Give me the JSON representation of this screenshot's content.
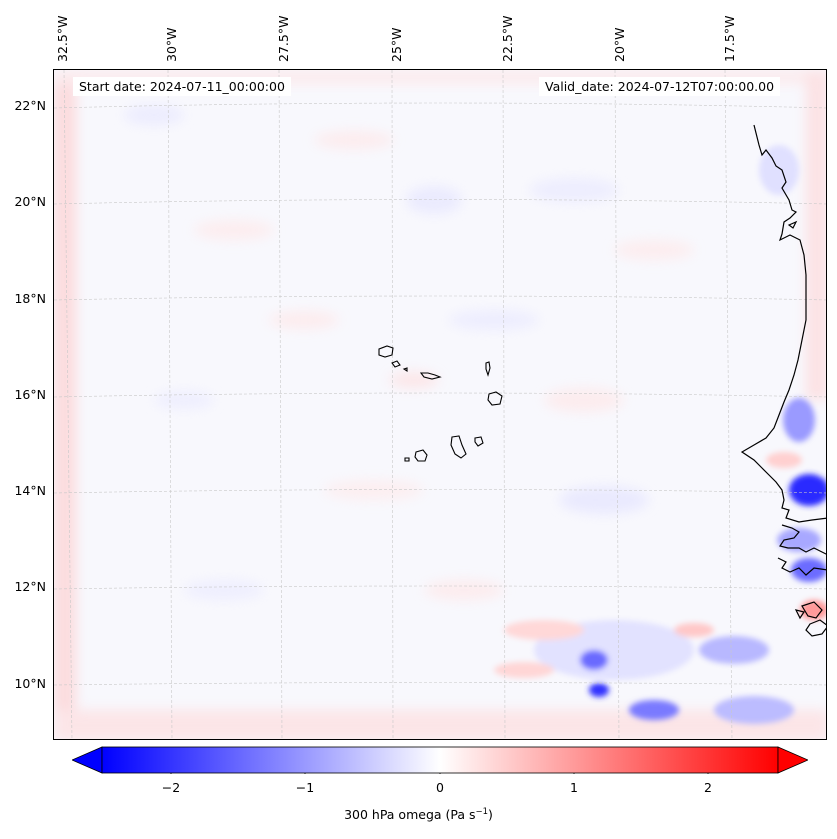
{
  "header": {
    "start_date": "Start date: 2024-07-11_00:00:00",
    "valid_date": "Valid_date: 2024-07-12T07:00:00.00"
  },
  "map": {
    "longitude_labels": [
      "32.5°W",
      "30°W",
      "27.5°W",
      "25°W",
      "22.5°W",
      "20°W",
      "17.5°W"
    ],
    "latitude_labels": [
      "22°N",
      "20°N",
      "18°N",
      "16°N",
      "14°N",
      "12°N",
      "10°N"
    ],
    "features": [
      "Cape Verde islands",
      "West African coastline"
    ],
    "field": "300 hPa omega"
  },
  "colorbar": {
    "tick_labels": [
      "−2",
      "−1",
      "0",
      "1",
      "2"
    ],
    "title_prefix": "300 hPa omega (Pa s",
    "title_exponent": "−1",
    "title_suffix": ")",
    "range": [
      -2.7,
      2.7
    ],
    "colormap": "bwr",
    "low_color": "#0000ff",
    "mid_color": "#ffffff",
    "high_color": "#ff0000"
  }
}
